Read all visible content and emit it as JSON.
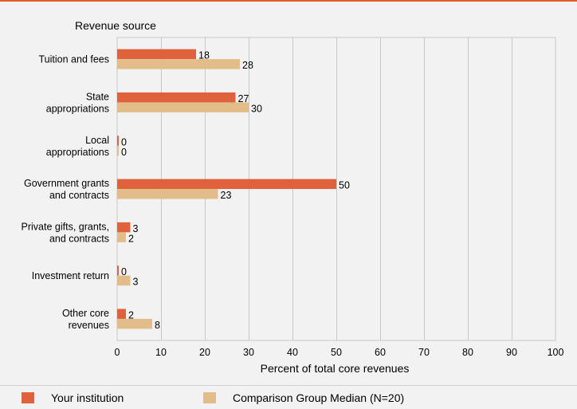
{
  "chart_data": {
    "type": "bar",
    "orientation": "horizontal",
    "category_header": "Revenue source",
    "categories": [
      "Tuition and fees",
      "State appropriations",
      "Local appropriations",
      "Government grants and contracts",
      "Private gifts, grants, and contracts",
      "Investment return",
      "Other core revenues"
    ],
    "category_label_lines": [
      [
        "Tuition and fees"
      ],
      [
        "State",
        "appropriations"
      ],
      [
        "Local",
        "appropriations"
      ],
      [
        "Government grants",
        "and contracts"
      ],
      [
        "Private gifts, grants,",
        "and contracts"
      ],
      [
        "Investment return"
      ],
      [
        "Other core",
        "revenues"
      ]
    ],
    "series": [
      {
        "name": "Your institution",
        "color": "#e0623d",
        "values": [
          18,
          27,
          0,
          50,
          3,
          0,
          2
        ]
      },
      {
        "name": "Comparison Group Median (N=20)",
        "color": "#e2bd8a",
        "values": [
          28,
          30,
          0,
          23,
          2,
          3,
          8
        ]
      }
    ],
    "xlabel": "Percent of total core revenues",
    "xlim": [
      0,
      100
    ],
    "xticks": [
      0,
      10,
      20,
      30,
      40,
      50,
      60,
      70,
      80,
      90,
      100
    ],
    "grid": true,
    "legend_position": "bottom"
  }
}
